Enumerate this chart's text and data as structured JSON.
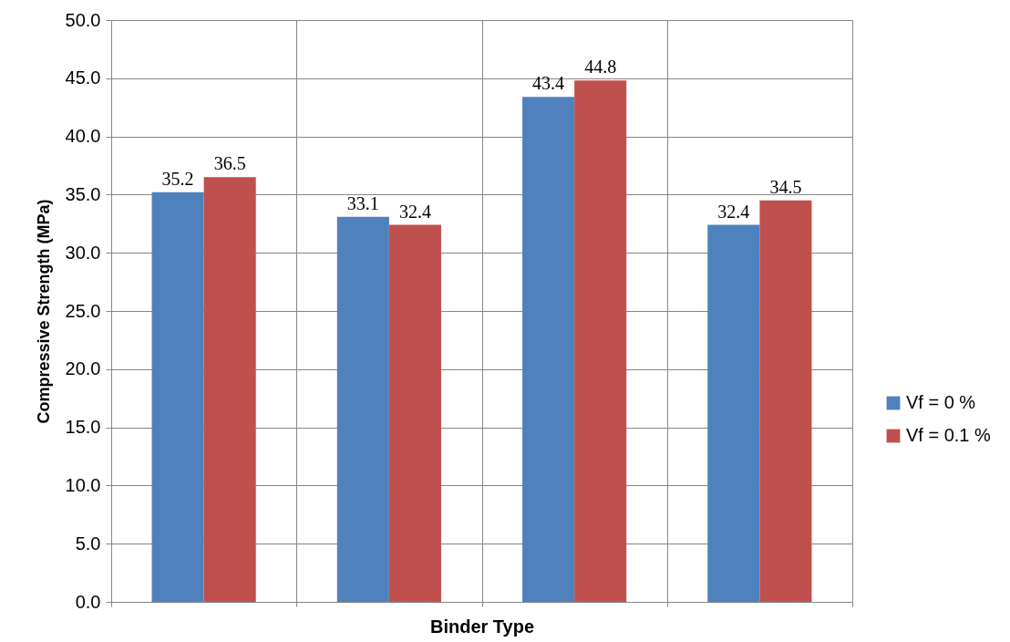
{
  "chart_data": {
    "type": "bar",
    "xlabel": "Binder Type",
    "ylabel": "Compressive Strength (MPa)",
    "categories": [
      null,
      null,
      null,
      null
    ],
    "series": [
      {
        "name": "Vf = 0 %",
        "color": "#4f81bd",
        "values": [
          35.2,
          33.1,
          43.4,
          32.4
        ]
      },
      {
        "name": "Vf = 0.1 %",
        "color": "#c0504d",
        "values": [
          36.5,
          32.4,
          44.8,
          34.5
        ]
      }
    ],
    "ylim": [
      0,
      50
    ],
    "yticks": [
      {
        "value": 0,
        "label": "0.0"
      },
      {
        "value": 5,
        "label": "5.0"
      },
      {
        "value": 10,
        "label": "10.0"
      },
      {
        "value": 15,
        "label": "15.0"
      },
      {
        "value": 20,
        "label": "20.0"
      },
      {
        "value": 25,
        "label": "25.0"
      },
      {
        "value": 30,
        "label": "30.0"
      },
      {
        "value": 35,
        "label": "35.0"
      },
      {
        "value": 40,
        "label": "40.0"
      },
      {
        "value": 45,
        "label": "45.0"
      },
      {
        "value": 50,
        "label": "50.0"
      }
    ],
    "grid": true,
    "legend": "right",
    "data_labels": true,
    "tick_labels": "y"
  }
}
